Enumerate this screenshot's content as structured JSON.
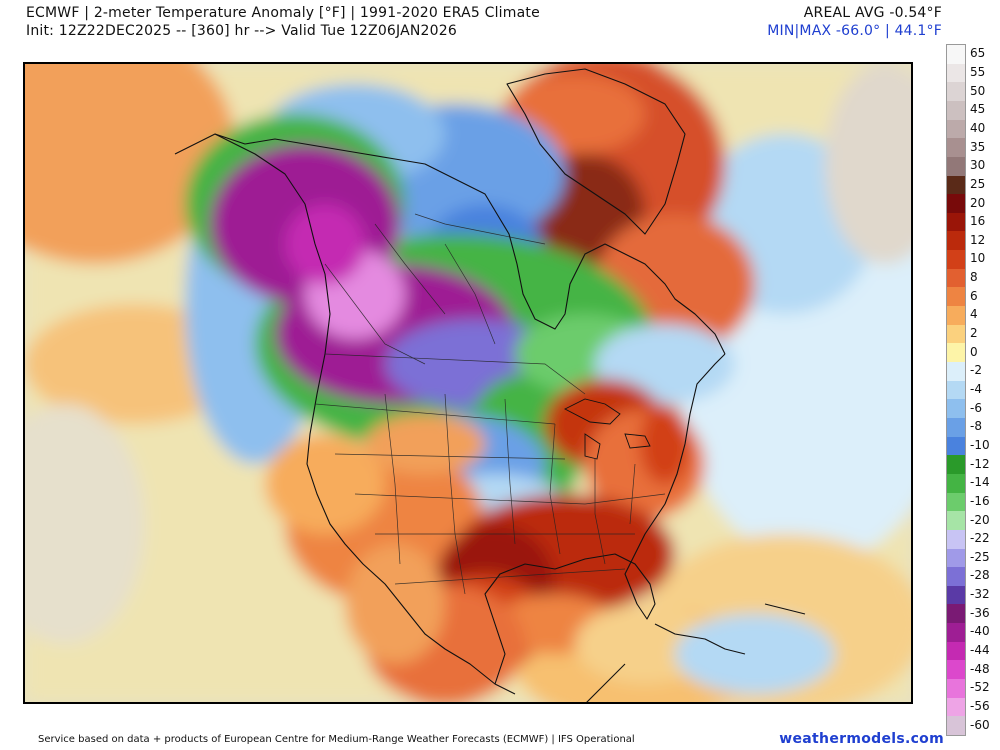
{
  "header": {
    "title_line_1": "ECMWF | 2-meter Temperature Anomaly [°F] | 1991-2020 ERA5 Climate",
    "title_line_2": "Init: 12Z22DEC2025 -- [360] hr --> Valid Tue 12Z06JAN2026",
    "areal_avg": "AREAL AVG -0.54°F",
    "min_max": "MIN|MAX -66.0° | 44.1°F"
  },
  "colorbar": {
    "labels": [
      "65",
      "55",
      "50",
      "45",
      "40",
      "35",
      "30",
      "25",
      "20",
      "16",
      "12",
      "10",
      "8",
      "6",
      "4",
      "2",
      "0",
      "-2",
      "-4",
      "-6",
      "-8",
      "-10",
      "-12",
      "-14",
      "-16",
      "-20",
      "-22",
      "-25",
      "-28",
      "-32",
      "-36",
      "-40",
      "-44",
      "-48",
      "-52",
      "-56",
      "-60"
    ],
    "colors": [
      "#f7f7f7",
      "#ebe6e6",
      "#dcd4d4",
      "#ccc0c0",
      "#bcaaaa",
      "#a89090",
      "#927878",
      "#5a2a18",
      "#780a0a",
      "#9a1508",
      "#bb2a0c",
      "#d24018",
      "#e26030",
      "#ee8442",
      "#f7ac5c",
      "#fbd17e",
      "#fdf4a8",
      "#dceffa",
      "#b4d9f4",
      "#8ebfee",
      "#6aa0e6",
      "#4a82de",
      "#2a9a2a",
      "#44b444",
      "#6ccc6c",
      "#a6e4a6",
      "#c8c4f4",
      "#a09ae8",
      "#7c70d6",
      "#5a3aa6",
      "#7a1a74",
      "#9e1e94",
      "#c42ab2",
      "#dc48cc",
      "#e874dc",
      "#eea4e6",
      "#d8c4d8"
    ]
  },
  "map": {
    "region": "North America",
    "color_scale": {
      "warm_extreme": "#5a2a18",
      "warm_strong": "#c4340e",
      "warm": "#e8703a",
      "warm_mild": "#f6b060",
      "neutral": "#f4eab0",
      "cool_mild": "#b4d9f4",
      "cool": "#6aa0e6",
      "cold": "#44b444",
      "very_cold": "#8a70d8",
      "extreme_cold": "#a6239e",
      "extreme_cold_core": "#d26cd6"
    }
  },
  "footer": {
    "credit": "Service based on data + products of European Centre for Medium-Range Weather Forecasts (ECMWF) | IFS Operational",
    "website": "weathermodels.com"
  }
}
